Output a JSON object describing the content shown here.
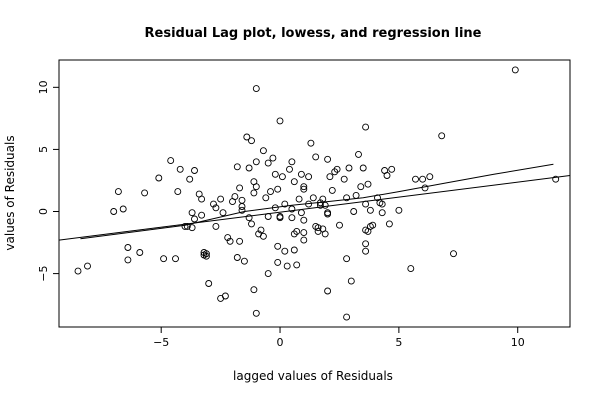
{
  "chart_data": {
    "type": "scatter",
    "title": "Residual Lag plot, lowess, and regression line",
    "xlabel": "lagged values of Residuals",
    "ylabel": "values of Residuals",
    "xlim": [
      -9.3,
      12.2
    ],
    "ylim": [
      -9.3,
      12.2
    ],
    "xticks": [
      -5,
      0,
      5,
      10
    ],
    "yticks": [
      -5,
      0,
      5,
      10
    ],
    "points": [
      [
        -8.5,
        -4.8
      ],
      [
        -8.1,
        -4.4
      ],
      [
        -7.0,
        0.0
      ],
      [
        -6.8,
        1.6
      ],
      [
        -6.6,
        0.2
      ],
      [
        -6.4,
        -2.9
      ],
      [
        -6.4,
        -3.9
      ],
      [
        -5.9,
        -3.3
      ],
      [
        -5.7,
        1.5
      ],
      [
        -5.1,
        2.7
      ],
      [
        -4.9,
        -3.8
      ],
      [
        -4.6,
        4.1
      ],
      [
        -4.4,
        -3.8
      ],
      [
        -4.3,
        1.6
      ],
      [
        -4.2,
        3.4
      ],
      [
        -4.0,
        -1.2
      ],
      [
        -3.9,
        -1.2
      ],
      [
        -3.8,
        2.6
      ],
      [
        -3.7,
        -1.3
      ],
      [
        -3.7,
        -0.1
      ],
      [
        -3.6,
        -0.6
      ],
      [
        -3.6,
        3.3
      ],
      [
        -3.4,
        1.4
      ],
      [
        -3.3,
        1.0
      ],
      [
        -3.3,
        -0.3
      ],
      [
        -3.2,
        -3.5
      ],
      [
        -3.2,
        -3.3
      ],
      [
        -3.1,
        -3.4
      ],
      [
        -3.1,
        -3.6
      ],
      [
        -3.0,
        -5.8
      ],
      [
        -2.8,
        0.6
      ],
      [
        -2.7,
        0.3
      ],
      [
        -2.7,
        -1.2
      ],
      [
        -2.5,
        -7.0
      ],
      [
        -2.5,
        1.0
      ],
      [
        -2.4,
        -0.1
      ],
      [
        -2.3,
        -6.8
      ],
      [
        -2.2,
        -2.1
      ],
      [
        -2.1,
        -2.4
      ],
      [
        -2.0,
        0.8
      ],
      [
        -1.9,
        1.2
      ],
      [
        -1.8,
        3.6
      ],
      [
        -1.8,
        -3.7
      ],
      [
        -1.7,
        1.9
      ],
      [
        -1.7,
        -2.4
      ],
      [
        -1.6,
        0.9
      ],
      [
        -1.6,
        0.4
      ],
      [
        -1.6,
        0.1
      ],
      [
        -1.5,
        -4.0
      ],
      [
        -1.4,
        6.0
      ],
      [
        -1.3,
        3.5
      ],
      [
        -1.3,
        -0.5
      ],
      [
        -1.2,
        -1.0
      ],
      [
        -1.2,
        5.7
      ],
      [
        -1.1,
        2.4
      ],
      [
        -1.1,
        1.5
      ],
      [
        -1.1,
        -6.3
      ],
      [
        -1.0,
        4.0
      ],
      [
        -1.0,
        9.9
      ],
      [
        -1.0,
        2.0
      ],
      [
        -1.0,
        -8.2
      ],
      [
        -0.9,
        -1.8
      ],
      [
        -0.8,
        -1.5
      ],
      [
        -0.7,
        4.9
      ],
      [
        -0.7,
        -2.0
      ],
      [
        -0.6,
        1.1
      ],
      [
        -0.5,
        3.9
      ],
      [
        -0.5,
        -0.4
      ],
      [
        -0.5,
        -5.0
      ],
      [
        -0.4,
        1.6
      ],
      [
        -0.3,
        4.3
      ],
      [
        -0.2,
        3.0
      ],
      [
        -0.2,
        0.3
      ],
      [
        -0.1,
        -2.8
      ],
      [
        -0.1,
        -4.1
      ],
      [
        -0.1,
        1.8
      ],
      [
        0.0,
        -0.5
      ],
      [
        0.0,
        -0.4
      ],
      [
        0.0,
        7.3
      ],
      [
        0.1,
        2.8
      ],
      [
        0.2,
        0.6
      ],
      [
        0.2,
        -3.2
      ],
      [
        0.3,
        -4.4
      ],
      [
        0.4,
        3.4
      ],
      [
        0.5,
        0.2
      ],
      [
        0.5,
        4.0
      ],
      [
        0.5,
        -0.5
      ],
      [
        0.6,
        2.4
      ],
      [
        0.6,
        -1.8
      ],
      [
        0.6,
        -3.1
      ],
      [
        0.7,
        -1.6
      ],
      [
        0.7,
        -4.3
      ],
      [
        0.8,
        1.0
      ],
      [
        0.9,
        3.0
      ],
      [
        0.9,
        -0.1
      ],
      [
        1.0,
        2.0
      ],
      [
        1.0,
        1.8
      ],
      [
        1.0,
        -0.7
      ],
      [
        1.0,
        -1.7
      ],
      [
        1.0,
        -2.3
      ],
      [
        1.2,
        2.8
      ],
      [
        1.2,
        0.6
      ],
      [
        1.3,
        5.5
      ],
      [
        1.4,
        1.1
      ],
      [
        1.5,
        -1.2
      ],
      [
        1.5,
        4.4
      ],
      [
        1.6,
        -1.3
      ],
      [
        1.6,
        -1.6
      ],
      [
        1.7,
        0.7
      ],
      [
        1.7,
        0.5
      ],
      [
        1.8,
        1.0
      ],
      [
        1.8,
        -1.4
      ],
      [
        1.9,
        0.5
      ],
      [
        1.9,
        -1.8
      ],
      [
        2.0,
        4.2
      ],
      [
        2.0,
        -0.1
      ],
      [
        2.0,
        -0.2
      ],
      [
        2.0,
        -6.4
      ],
      [
        2.1,
        2.8
      ],
      [
        2.2,
        1.7
      ],
      [
        2.3,
        3.2
      ],
      [
        2.4,
        3.4
      ],
      [
        2.5,
        -1.1
      ],
      [
        2.7,
        2.6
      ],
      [
        2.8,
        1.1
      ],
      [
        2.8,
        -3.8
      ],
      [
        2.8,
        -8.5
      ],
      [
        2.9,
        3.5
      ],
      [
        3.0,
        -5.6
      ],
      [
        3.1,
        0.0
      ],
      [
        3.2,
        1.3
      ],
      [
        3.3,
        4.6
      ],
      [
        3.4,
        2.0
      ],
      [
        3.5,
        3.5
      ],
      [
        3.6,
        6.8
      ],
      [
        3.6,
        0.6
      ],
      [
        3.6,
        -1.5
      ],
      [
        3.6,
        -2.6
      ],
      [
        3.6,
        -3.2
      ],
      [
        3.7,
        2.2
      ],
      [
        3.7,
        -1.6
      ],
      [
        3.8,
        -1.2
      ],
      [
        3.8,
        0.1
      ],
      [
        3.9,
        -1.1
      ],
      [
        4.1,
        1.1
      ],
      [
        4.2,
        0.7
      ],
      [
        4.3,
        0.6
      ],
      [
        4.3,
        -0.1
      ],
      [
        4.4,
        3.3
      ],
      [
        4.5,
        2.9
      ],
      [
        4.6,
        -1.0
      ],
      [
        4.7,
        3.4
      ],
      [
        5.0,
        0.1
      ],
      [
        5.5,
        -4.6
      ],
      [
        5.7,
        2.6
      ],
      [
        6.0,
        2.6
      ],
      [
        6.1,
        1.9
      ],
      [
        6.3,
        2.8
      ],
      [
        6.8,
        6.1
      ],
      [
        7.3,
        -3.4
      ],
      [
        9.9,
        11.4
      ],
      [
        11.6,
        2.6
      ]
    ],
    "lowess": [
      [
        -8.4,
        -2.2
      ],
      [
        -4.0,
        -1.1
      ],
      [
        -1.5,
        0.0
      ],
      [
        0.5,
        0.5
      ],
      [
        2.0,
        0.8
      ],
      [
        3.5,
        1.1
      ],
      [
        5.0,
        1.6
      ],
      [
        7.0,
        2.3
      ],
      [
        9.0,
        3.0
      ],
      [
        11.5,
        3.8
      ]
    ],
    "regression": [
      [
        -9.3,
        -2.3
      ],
      [
        12.2,
        2.9
      ]
    ],
    "grid": false
  }
}
